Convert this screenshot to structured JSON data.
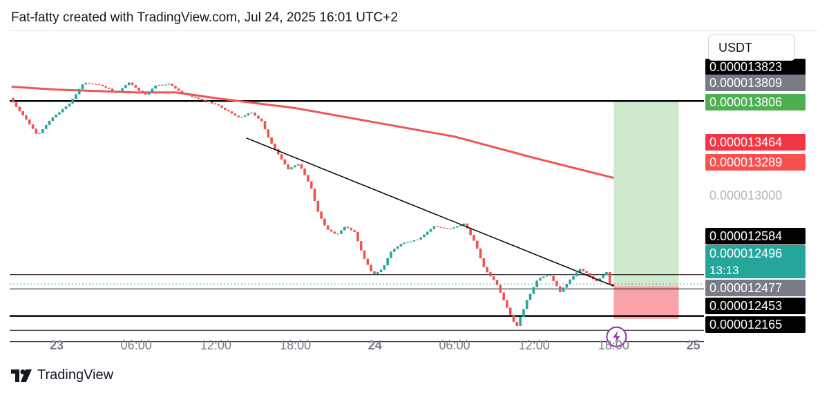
{
  "header": {
    "text": "Fat-fatty created with TradingView.com, Jul 24, 2025 16:01 UTC+2"
  },
  "currency": {
    "label": "USDT"
  },
  "logo": {
    "text": "TradingView"
  },
  "colors": {
    "up": "#26a69a",
    "down": "#ef5350",
    "ma": "#f05454",
    "target_zone": "#cfe9cf",
    "stop_zone": "#f9a3a8"
  },
  "chart_data": {
    "type": "candlestick",
    "price_range": [
      1.21e-05,
      1.39e-05
    ],
    "x_ticks": [
      {
        "label": "23",
        "bold": true,
        "t": 0
      },
      {
        "label": "06:00",
        "bold": false,
        "t": 6
      },
      {
        "label": "12:00",
        "bold": false,
        "t": 12
      },
      {
        "label": "18:00",
        "bold": false,
        "t": 18
      },
      {
        "label": "24",
        "bold": true,
        "t": 24
      },
      {
        "label": "06:00",
        "bold": false,
        "t": 30
      },
      {
        "label": "12:00",
        "bold": false,
        "t": 36
      },
      {
        "label": "18:00",
        "bold": false,
        "t": 42
      },
      {
        "label": "25",
        "bold": true,
        "t": 48
      }
    ],
    "price_path": [
      [
        -3.4,
        1.382e-05
      ],
      [
        -2.4,
        1.37e-05
      ],
      [
        -1.3,
        1.356e-05
      ],
      [
        -0.2,
        1.368e-05
      ],
      [
        1.1,
        1.378e-05
      ],
      [
        2.2,
        1.393e-05
      ],
      [
        3.5,
        1.391e-05
      ],
      [
        4.7,
        1.386e-05
      ],
      [
        5.6,
        1.393e-05
      ],
      [
        6.8,
        1.384e-05
      ],
      [
        7.6,
        1.391e-05
      ],
      [
        8.6,
        1.392e-05
      ],
      [
        9.7,
        1.385e-05
      ],
      [
        11.0,
        1.381e-05
      ],
      [
        12.3,
        1.377e-05
      ],
      [
        13.9,
        1.368e-05
      ],
      [
        14.8,
        1.372e-05
      ],
      [
        15.6,
        1.366e-05
      ],
      [
        16.2,
        1.352e-05
      ],
      [
        16.9,
        1.342e-05
      ],
      [
        17.6,
        1.332e-05
      ],
      [
        18.4,
        1.336e-05
      ],
      [
        19.3,
        1.32e-05
      ],
      [
        19.8,
        1.303e-05
      ],
      [
        20.5,
        1.29e-05
      ],
      [
        21.3,
        1.286e-05
      ],
      [
        21.9,
        1.292e-05
      ],
      [
        22.6,
        1.288e-05
      ],
      [
        23.3,
        1.27e-05
      ],
      [
        24.0,
        1.258e-05
      ],
      [
        24.7,
        1.262e-05
      ],
      [
        25.4,
        1.275e-05
      ],
      [
        26.2,
        1.28e-05
      ],
      [
        27.4,
        1.283e-05
      ],
      [
        28.6,
        1.292e-05
      ],
      [
        29.8,
        1.29e-05
      ],
      [
        30.9,
        1.294e-05
      ],
      [
        31.7,
        1.28e-05
      ],
      [
        32.4,
        1.262e-05
      ],
      [
        33.3,
        1.252e-05
      ],
      [
        34.1,
        1.235e-05
      ],
      [
        34.8,
        1.221e-05
      ],
      [
        35.6,
        1.24e-05
      ],
      [
        36.4,
        1.255e-05
      ],
      [
        37.3,
        1.258e-05
      ],
      [
        38.1,
        1.246e-05
      ],
      [
        38.9,
        1.255e-05
      ],
      [
        39.6,
        1.262e-05
      ],
      [
        40.1,
        1.259e-05
      ],
      [
        40.8,
        1.253e-05
      ],
      [
        41.6,
        1.26e-05
      ],
      [
        41.9,
        1.25e-05
      ]
    ],
    "moving_average": [
      [
        -3.4,
        1.39e-05
      ],
      [
        0,
        1.388e-05
      ],
      [
        6,
        1.386e-05
      ],
      [
        9,
        1.386e-05
      ],
      [
        12,
        1.382e-05
      ],
      [
        18,
        1.375e-05
      ],
      [
        24,
        1.365e-05
      ],
      [
        30,
        1.355e-05
      ],
      [
        36,
        1.34e-05
      ],
      [
        42,
        1.326e-05
      ]
    ],
    "trendline": {
      "from": [
        14.3,
        1.354e-05
      ],
      "to": [
        42.0,
        1.25e-05
      ]
    },
    "horizontal_levels": [
      {
        "price": 1.38e-05,
        "style": "bold"
      },
      {
        "price": 1.258e-05,
        "style": "thin"
      },
      {
        "price": 1.248e-05,
        "style": "thin"
      },
      {
        "price": 1.229e-05,
        "style": "bold"
      },
      {
        "price": 1.219e-05,
        "style": "thin"
      },
      {
        "price": 1.211e-05,
        "style": "thin"
      }
    ],
    "position": {
      "t_start": 42.0,
      "t_end": 46.9,
      "entry": 1.25e-05,
      "target": 1.38e-05,
      "stop": 1.227e-05
    },
    "price_labels": [
      {
        "text": "0.000013823",
        "price": 1.39e-05,
        "bg": "#000000",
        "fg": "#ffffff",
        "clip": "top"
      },
      {
        "text": "0.000013809",
        "price": 1.366e-05,
        "bg": "#787b86",
        "fg": "#ffffff"
      },
      {
        "text": "0.000013806",
        "price": 1.379e-05,
        "bg": "#4caf50",
        "fg": "#ffffff",
        "col_offset": true
      },
      {
        "text": "0.000013464",
        "price": 1.353e-05,
        "bg": "#f23645",
        "fg": "#ffffff"
      },
      {
        "text": "0.000013289",
        "price": 1.342e-05,
        "bg": "#f5524f",
        "fg": "#ffffff"
      },
      {
        "text": "0.000013000",
        "price": 1.304e-05,
        "bg": "none",
        "fg": "#b2b5be"
      },
      {
        "text": "0.000012584",
        "price": 1.258e-05,
        "bg": "#000000",
        "fg": "#ffffff"
      },
      {
        "text": "0.000012496",
        "price": 1.25e-05,
        "bg": "#26a69a",
        "fg": "#ffffff",
        "sub": "13:13"
      },
      {
        "text": "0.000012477",
        "price": 1.237e-05,
        "bg": "#787b86",
        "fg": "#ffffff"
      },
      {
        "text": "0.000012453",
        "price": 1.227e-05,
        "bg": "#000000",
        "fg": "#ffffff"
      },
      {
        "text": "0.000012165",
        "price": 1.211e-05,
        "bg": "#000000",
        "fg": "#ffffff",
        "clip": "bottom"
      }
    ]
  }
}
